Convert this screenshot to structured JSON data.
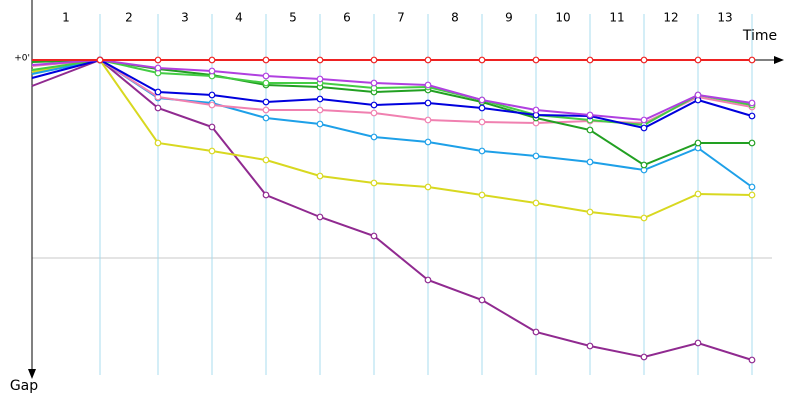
{
  "chart_data": {
    "type": "line",
    "x_label": "Time",
    "y_label": "Gap",
    "categories": [
      null,
      "1",
      "2",
      "3",
      "4",
      "5",
      "6",
      "7",
      "8",
      "9",
      "10",
      "11",
      "12",
      "13"
    ],
    "ylim": [
      0,
      315
    ],
    "yticks": [
      {
        "value": 0,
        "label": "+0'"
      }
    ],
    "grid": [
      0,
      198
    ],
    "series": [
      {
        "color": "#902a90",
        "values": [
          26,
          0,
          48,
          67,
          135,
          157,
          176,
          220,
          240,
          272,
          286,
          297,
          283,
          300
        ]
      },
      {
        "color": "#d8d820",
        "values": [
          12,
          0,
          83,
          91,
          100,
          116,
          123,
          127,
          135,
          143,
          152,
          158,
          134,
          135
        ]
      },
      {
        "color": "#1ea0e8",
        "values": [
          14,
          0,
          38,
          43,
          58,
          64,
          77,
          82,
          91,
          96,
          102,
          110,
          88,
          127
        ]
      },
      {
        "color": "#f080b0",
        "values": [
          6,
          0,
          37,
          45,
          50,
          50,
          53,
          60,
          62,
          63,
          61,
          63,
          37,
          47
        ]
      },
      {
        "color": "#22a022",
        "values": [
          2,
          0,
          9,
          15,
          25,
          27,
          32,
          30,
          42,
          58,
          70,
          105,
          83,
          83
        ]
      },
      {
        "color": "#44cc44",
        "values": [
          10,
          0,
          13,
          16,
          23,
          23,
          28,
          27,
          40,
          55,
          60,
          65,
          35,
          45
        ]
      },
      {
        "color": "#0000dd",
        "values": [
          18,
          0,
          32,
          35,
          42,
          39,
          45,
          43,
          48,
          55,
          56,
          68,
          40,
          56
        ]
      },
      {
        "color": "#b040e0",
        "values": [
          5,
          0,
          8,
          11,
          16,
          19,
          23,
          25,
          40,
          50,
          55,
          60,
          35,
          43
        ]
      },
      {
        "color": "#ee2222",
        "values": [
          0,
          0,
          0,
          0,
          0,
          0,
          0,
          0,
          0,
          0,
          0,
          0,
          0,
          0
        ]
      }
    ]
  }
}
